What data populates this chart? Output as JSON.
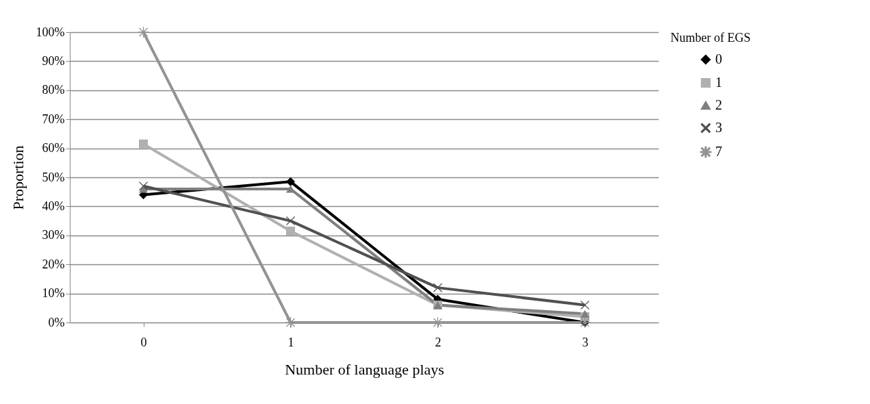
{
  "chart_data": {
    "type": "line",
    "xlabel": "Number of language plays",
    "ylabel": "Proportion",
    "legend_title": "Number of EGS",
    "categories": [
      "0",
      "1",
      "2",
      "3"
    ],
    "series": [
      {
        "name": "0",
        "color": "#000000",
        "marker": "diamond",
        "values": [
          44,
          48.5,
          8,
          0
        ]
      },
      {
        "name": "1",
        "color": "#b0b0b0",
        "marker": "square",
        "values": [
          61.5,
          31.5,
          6,
          2
        ]
      },
      {
        "name": "2",
        "color": "#7f7f7f",
        "marker": "triangle",
        "values": [
          46,
          46,
          6,
          3
        ]
      },
      {
        "name": "3",
        "color": "#505050",
        "marker": "cross",
        "values": [
          47,
          35,
          12,
          6
        ]
      },
      {
        "name": "7",
        "color": "#939393",
        "marker": "star",
        "values": [
          100,
          0,
          0,
          0
        ]
      }
    ],
    "ylim": [
      0,
      100
    ],
    "yticks": [
      {
        "value": 0,
        "label": "0%"
      },
      {
        "value": 10,
        "label": "10%"
      },
      {
        "value": 20,
        "label": "20%"
      },
      {
        "value": 30,
        "label": "30%"
      },
      {
        "value": 40,
        "label": "40%"
      },
      {
        "value": 50,
        "label": "50%"
      },
      {
        "value": 60,
        "label": "60%"
      },
      {
        "value": 70,
        "label": "70%"
      },
      {
        "value": 80,
        "label": "80%"
      },
      {
        "value": 90,
        "label": "90%"
      },
      {
        "value": 100,
        "label": "100%"
      }
    ],
    "grid": "y",
    "legend": "right",
    "line_style": "solid"
  }
}
